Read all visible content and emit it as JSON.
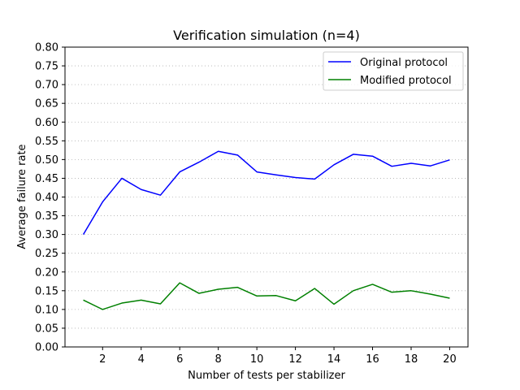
{
  "chart_data": {
    "type": "line",
    "title": "Verification simulation (n=4)",
    "xlabel": "Number of tests per stabilizer",
    "ylabel": "Average failure rate",
    "xlim": [
      0.05,
      20.95
    ],
    "ylim": [
      0.0,
      0.8
    ],
    "x_ticks": [
      2,
      4,
      6,
      8,
      10,
      12,
      14,
      16,
      18,
      20
    ],
    "y_ticks": [
      0.0,
      0.05,
      0.1,
      0.15,
      0.2,
      0.25,
      0.3,
      0.35,
      0.4,
      0.45,
      0.5,
      0.55,
      0.6,
      0.65,
      0.7,
      0.75,
      0.8
    ],
    "x_tick_labels": [
      "2",
      "4",
      "6",
      "8",
      "10",
      "12",
      "14",
      "16",
      "18",
      "20"
    ],
    "y_tick_labels": [
      "0.00",
      "0.05",
      "0.10",
      "0.15",
      "0.20",
      "0.25",
      "0.30",
      "0.35",
      "0.40",
      "0.45",
      "0.50",
      "0.55",
      "0.60",
      "0.65",
      "0.70",
      "0.75",
      "0.80"
    ],
    "grid": "y-dotted",
    "legend_position": "top-right",
    "x": [
      1,
      2,
      3,
      4,
      5,
      6,
      7,
      8,
      9,
      10,
      11,
      12,
      13,
      14,
      15,
      16,
      17,
      18,
      19,
      20
    ],
    "series": [
      {
        "name": "Original protocol",
        "color": "#0000ff",
        "values": [
          0.3,
          0.387,
          0.45,
          0.42,
          0.405,
          0.467,
          0.493,
          0.522,
          0.512,
          0.467,
          0.459,
          0.452,
          0.448,
          0.486,
          0.514,
          0.509,
          0.482,
          0.49,
          0.483,
          0.499
        ]
      },
      {
        "name": "Modified protocol",
        "color": "#008000",
        "values": [
          0.125,
          0.1,
          0.117,
          0.125,
          0.115,
          0.171,
          0.143,
          0.154,
          0.159,
          0.136,
          0.137,
          0.123,
          0.156,
          0.114,
          0.15,
          0.167,
          0.146,
          0.15,
          0.141,
          0.13
        ]
      }
    ]
  }
}
